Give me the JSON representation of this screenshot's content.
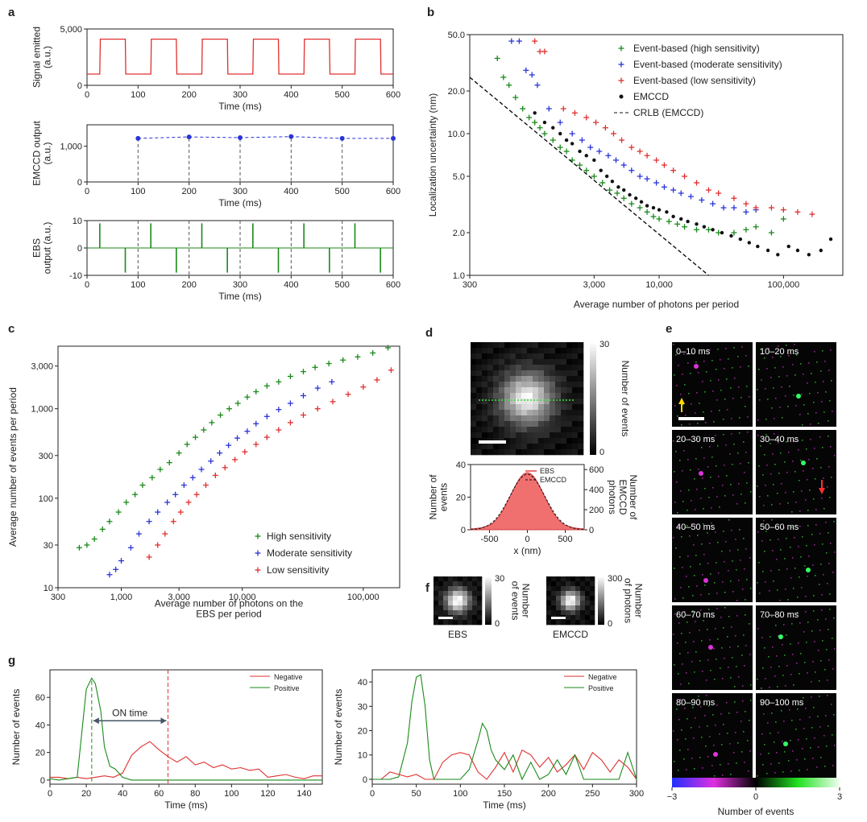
{
  "panel_labels": {
    "a": "a",
    "b": "b",
    "c": "c",
    "d": "d",
    "e": "e",
    "f": "f",
    "g": "g"
  },
  "chart_data": [
    {
      "id": "a1",
      "type": "line",
      "xlabel": "Time (ms)",
      "ylabel": "Signal emitted\n(a.u.)",
      "xlim": [
        0,
        600
      ],
      "ylim": [
        0,
        5000
      ],
      "xticks": [
        "0",
        "100",
        "200",
        "300",
        "400",
        "500",
        "600"
      ],
      "yticks": [
        "0",
        "5,000"
      ],
      "series": [
        {
          "color": "#e03030",
          "period": 100,
          "on_start": 25,
          "on_end": 75,
          "low": 1000,
          "high": 4100
        }
      ]
    },
    {
      "id": "a2",
      "type": "line",
      "xlabel": "Time (ms)",
      "ylabel": "EMCCD output\n(a.u.)",
      "xlim": [
        0,
        600
      ],
      "ylim": [
        0,
        1600
      ],
      "xticks": [
        "0",
        "100",
        "200",
        "300",
        "400",
        "500",
        "600"
      ],
      "yticks": [
        "0",
        "1,000"
      ],
      "x": [
        100,
        200,
        300,
        400,
        500,
        600
      ],
      "values": [
        1220,
        1260,
        1240,
        1270,
        1220,
        1220
      ],
      "color": "#2a35d8"
    },
    {
      "id": "a3",
      "type": "line",
      "xlabel": "Time (ms)",
      "ylabel": "EBS\noutput (a.u.)",
      "xlim": [
        0,
        600
      ],
      "ylim": [
        -10,
        10
      ],
      "xticks": [
        "0",
        "100",
        "200",
        "300",
        "400",
        "500",
        "600"
      ],
      "yticks": [
        "10",
        "0",
        "-10"
      ],
      "positive_spikes": [
        25,
        125,
        225,
        325,
        425,
        525
      ],
      "negative_spikes": [
        75,
        175,
        275,
        375,
        475,
        575
      ],
      "color": "#1a8a1a"
    },
    {
      "id": "b",
      "type": "scatter",
      "xlabel": "Average number of photons per period",
      "ylabel": "Localization uncertainty (nm)",
      "xscale": "log",
      "yscale": "log",
      "xlim": [
        300,
        300000
      ],
      "ylim": [
        1,
        50
      ],
      "xticks": [
        "300",
        "3,000",
        "10,000",
        "100,000"
      ],
      "xtick_values": [
        300,
        3000,
        10000,
        100000
      ],
      "yticks": [
        "1.0",
        "2.0",
        "5.0",
        "10.0",
        "20.0",
        "50.0"
      ],
      "ytick_values": [
        1,
        2,
        5,
        10,
        20,
        50
      ],
      "legend": [
        "Event-based (high sensitivity)",
        "Event-based (moderate sensitivity)",
        "Event-based (low sensitivity)",
        "EMCCD",
        "CRLB (EMCCD)"
      ],
      "series": [
        {
          "name": "Event-based (high sensitivity)",
          "color": "#1a8a1a",
          "marker": "plus",
          "x": [
            500,
            560,
            620,
            700,
            800,
            900,
            1000,
            1100,
            1200,
            1400,
            1600,
            1800,
            2000,
            2300,
            2600,
            3000,
            3500,
            4000,
            4600,
            5200,
            6000,
            7000,
            8000,
            9000,
            10000,
            12000,
            14000,
            16000,
            20000,
            25000,
            30000,
            40000,
            50000,
            60000,
            80000,
            100000
          ],
          "y": [
            34,
            25,
            22,
            18,
            15,
            13,
            12,
            11,
            10,
            9,
            8,
            7.5,
            6.5,
            6,
            5.5,
            5,
            4.5,
            4,
            3.8,
            3.5,
            3.2,
            3,
            2.8,
            2.6,
            2.5,
            2.4,
            2.3,
            2.2,
            2.1,
            2.1,
            2,
            2,
            2.1,
            2.2,
            2,
            2.5
          ]
        },
        {
          "name": "Event-based (moderate sensitivity)",
          "color": "#2a35d8",
          "marker": "plus",
          "x": [
            650,
            750,
            850,
            950,
            1050,
            1300,
            1600,
            2000,
            2400,
            2800,
            3300,
            3900,
            4500,
            5200,
            6000,
            7000,
            8000,
            9500,
            11000,
            13000,
            15000,
            18000,
            22000,
            27000,
            33000,
            40000,
            50000,
            60000
          ],
          "y": [
            45,
            45,
            28,
            26,
            22,
            15,
            12,
            10,
            9,
            8,
            7.5,
            7,
            6.5,
            6,
            5.5,
            5,
            4.8,
            4.5,
            4.2,
            4,
            3.8,
            3.6,
            3.4,
            3.2,
            3,
            3,
            2.8,
            2.9
          ]
        },
        {
          "name": "Event-based (low sensitivity)",
          "color": "#e03030",
          "marker": "plus",
          "x": [
            1000,
            1100,
            1200,
            1700,
            2100,
            2600,
            3100,
            3700,
            4300,
            5000,
            6000,
            7000,
            8000,
            9500,
            11000,
            13000,
            16000,
            20000,
            25000,
            30000,
            40000,
            50000,
            60000,
            80000,
            100000,
            130000,
            170000
          ],
          "y": [
            45,
            38,
            38,
            15,
            14,
            13,
            12,
            11,
            10,
            9,
            8,
            7.5,
            7,
            6.5,
            6,
            5.5,
            5,
            4.5,
            4,
            3.8,
            3.5,
            3.2,
            3,
            3,
            2.9,
            2.8,
            2.7
          ]
        },
        {
          "name": "EMCCD",
          "color": "#111111",
          "marker": "dot",
          "x": [
            1000,
            1200,
            1400,
            1600,
            1800,
            2000,
            2300,
            2600,
            3000,
            3400,
            3800,
            4200,
            4700,
            5200,
            5800,
            6500,
            7200,
            8000,
            9000,
            10000,
            11500,
            13000,
            15000,
            17000,
            20000,
            23000,
            27000,
            32000,
            38000,
            45000,
            53000,
            62000,
            75000,
            90000,
            110000,
            130000,
            160000,
            200000,
            240000
          ],
          "y": [
            14,
            12,
            11,
            10,
            9,
            8.5,
            7.5,
            7,
            6.5,
            5.5,
            5,
            4.6,
            4.2,
            4,
            3.7,
            3.5,
            3.3,
            3.1,
            3,
            2.9,
            2.8,
            2.6,
            2.5,
            2.4,
            2.3,
            2.2,
            2.1,
            2,
            1.9,
            1.8,
            1.7,
            1.6,
            1.5,
            1.4,
            1.6,
            1.5,
            1.4,
            1.5,
            1.8
          ]
        },
        {
          "name": "CRLB (EMCCD)",
          "color": "#111111",
          "dash": true,
          "x": [
            300,
            25000
          ],
          "y": [
            25,
            1
          ]
        }
      ]
    },
    {
      "id": "c",
      "type": "scatter",
      "xlabel": "Average number of photons on the\nEBS per period",
      "ylabel": "Average number of events per period",
      "xscale": "log",
      "yscale": "log",
      "xlim": [
        300,
        200000
      ],
      "ylim": [
        10,
        5000
      ],
      "xticks": [
        "300",
        "1,000",
        "3,000",
        "10,000",
        "100,000"
      ],
      "xtick_values": [
        300,
        1000,
        3000,
        10000,
        100000
      ],
      "yticks": [
        "10",
        "30",
        "100",
        "300",
        "1,000",
        "3,000"
      ],
      "ytick_values": [
        10,
        30,
        100,
        300,
        1000,
        3000
      ],
      "legend": [
        "High sensitivity",
        "Moderate sensitivity",
        "Low sensitivity"
      ],
      "series": [
        {
          "name": "High sensitivity",
          "color": "#1a8a1a",
          "x": [
            450,
            520,
            600,
            700,
            800,
            950,
            1100,
            1300,
            1500,
            1800,
            2100,
            2500,
            3000,
            3500,
            4100,
            4800,
            5600,
            6600,
            7800,
            9200,
            11000,
            13000,
            16000,
            20000,
            25000,
            32000,
            40000,
            52000,
            68000,
            90000,
            120000,
            160000
          ],
          "y": [
            28,
            30,
            35,
            45,
            55,
            70,
            90,
            110,
            140,
            170,
            210,
            250,
            320,
            400,
            480,
            580,
            700,
            850,
            1000,
            1150,
            1350,
            1550,
            1800,
            2000,
            2300,
            2600,
            2900,
            3200,
            3500,
            3800,
            4200,
            4800
          ]
        },
        {
          "name": "Moderate sensitivity",
          "color": "#2a35d8",
          "x": [
            800,
            900,
            1000,
            1200,
            1400,
            1700,
            2000,
            2400,
            2800,
            3300,
            3900,
            4600,
            5500,
            6500,
            7700,
            9100,
            11000,
            13000,
            16000,
            20000,
            25000,
            32000,
            42000,
            55000
          ],
          "y": [
            14,
            16,
            20,
            28,
            40,
            55,
            70,
            90,
            110,
            140,
            170,
            210,
            260,
            320,
            390,
            470,
            560,
            680,
            820,
            980,
            1150,
            1400,
            1700,
            2000
          ]
        },
        {
          "name": "Low sensitivity",
          "color": "#e03030",
          "x": [
            1700,
            2000,
            2300,
            2700,
            3100,
            3600,
            4200,
            5000,
            6000,
            7200,
            8700,
            10500,
            13000,
            16000,
            20000,
            25000,
            32000,
            42000,
            56000,
            75000,
            100000,
            130000,
            170000
          ],
          "y": [
            22,
            30,
            40,
            55,
            70,
            90,
            110,
            140,
            180,
            220,
            270,
            330,
            400,
            480,
            580,
            700,
            850,
            1000,
            1200,
            1450,
            1750,
            2100,
            2700
          ]
        }
      ]
    },
    {
      "id": "d_profile",
      "type": "line",
      "xlabel": "x (nm)",
      "ylabel": "Number of\nevents",
      "ylabel_right": "Number of\nEMCCD\nphotons",
      "xlim": [
        -750,
        750
      ],
      "ylim": [
        0,
        40
      ],
      "ylim_right": [
        0,
        650
      ],
      "xticks": [
        "-500",
        "0",
        "500"
      ],
      "yticks": [
        "0",
        "20",
        "40"
      ],
      "yticks_right": [
        "0",
        "200",
        "400",
        "600"
      ],
      "legend": [
        "EBS",
        "EMCCD"
      ],
      "series": [
        {
          "name": "EBS",
          "color": "#f07070",
          "sigma": 220,
          "peak": 35
        },
        {
          "name": "EMCCD",
          "color": "#111111",
          "dash": true,
          "sigma": 230,
          "peak": 34
        }
      ]
    },
    {
      "id": "g1",
      "type": "line",
      "xlabel": "Time (ms)",
      "ylabel": "Number of events",
      "xlim": [
        0,
        150
      ],
      "ylim": [
        -3,
        80
      ],
      "xticks": [
        "0",
        "20",
        "40",
        "60",
        "80",
        "100",
        "120",
        "140"
      ],
      "yticks": [
        "0",
        "20",
        "40",
        "60"
      ],
      "annotation": "ON time",
      "legend": [
        "Negative",
        "Positive"
      ],
      "series": [
        {
          "name": "Negative",
          "color": "#e03030",
          "x": [
            0,
            5,
            10,
            15,
            20,
            25,
            30,
            35,
            40,
            45,
            50,
            55,
            60,
            65,
            70,
            75,
            80,
            85,
            90,
            95,
            100,
            105,
            110,
            115,
            120,
            125,
            130,
            135,
            140,
            145,
            150
          ],
          "y": [
            2,
            2,
            1,
            2,
            1,
            2,
            3,
            2,
            5,
            18,
            24,
            28,
            22,
            17,
            13,
            17,
            11,
            13,
            9,
            11,
            8,
            9,
            7,
            8,
            2,
            3,
            4,
            2,
            1,
            3,
            3
          ]
        },
        {
          "name": "Positive",
          "color": "#1a8a1a",
          "x": [
            0,
            5,
            10,
            15,
            20,
            23,
            25,
            28,
            30,
            33,
            36,
            40,
            45,
            50,
            60,
            70,
            80,
            90,
            100,
            110,
            120,
            130,
            140,
            150
          ],
          "y": [
            1,
            0,
            1,
            2,
            66,
            74,
            70,
            50,
            24,
            10,
            8,
            2,
            0,
            0,
            0,
            0,
            0,
            0,
            0,
            0,
            0,
            0,
            0,
            0
          ]
        }
      ]
    },
    {
      "id": "g2",
      "type": "line",
      "xlabel": "Time (ms)",
      "ylabel": "Number of events",
      "xlim": [
        0,
        300
      ],
      "ylim": [
        -2,
        45
      ],
      "xticks": [
        "0",
        "50",
        "100",
        "150",
        "200",
        "250",
        "300"
      ],
      "yticks": [
        "0",
        "10",
        "20",
        "30",
        "40"
      ],
      "legend": [
        "Negative",
        "Positive"
      ],
      "series": [
        {
          "name": "Negative",
          "color": "#e03030",
          "x": [
            0,
            10,
            20,
            30,
            40,
            50,
            60,
            70,
            80,
            90,
            100,
            110,
            120,
            130,
            140,
            150,
            160,
            170,
            180,
            190,
            200,
            210,
            220,
            230,
            240,
            250,
            260,
            270,
            280,
            290,
            300
          ],
          "y": [
            0,
            0,
            3,
            2,
            1,
            2,
            0,
            0,
            7,
            10,
            11,
            10,
            3,
            0,
            5,
            11,
            3,
            12,
            10,
            5,
            9,
            3,
            6,
            10,
            4,
            11,
            8,
            3,
            8,
            5,
            0
          ]
        },
        {
          "name": "Positive",
          "color": "#1a8a1a",
          "x": [
            0,
            10,
            20,
            30,
            40,
            45,
            50,
            55,
            60,
            65,
            70,
            80,
            90,
            100,
            110,
            120,
            125,
            130,
            135,
            140,
            150,
            160,
            170,
            180,
            190,
            200,
            210,
            220,
            230,
            240,
            250,
            260,
            270,
            280,
            290,
            300
          ],
          "y": [
            0,
            0,
            0,
            1,
            15,
            32,
            42,
            43,
            30,
            8,
            0,
            0,
            0,
            0,
            4,
            16,
            23,
            20,
            12,
            8,
            4,
            10,
            0,
            7,
            0,
            2,
            8,
            2,
            10,
            0,
            0,
            0,
            0,
            0,
            11,
            0
          ]
        }
      ]
    }
  ],
  "d_image": {
    "colorbar_max": "30",
    "colorbar_min": "0",
    "colorbar_label": "Number of events"
  },
  "e_frames": [
    "0–10 ms",
    "10–20 ms",
    "20–30 ms",
    "30–40 ms",
    "40–50 ms",
    "50–60 ms",
    "60–70 ms",
    "70–80 ms",
    "80–90 ms",
    "90–100 ms"
  ],
  "e_colorbar": {
    "ticks": [
      "−3",
      "0",
      "3"
    ],
    "label": "Number of events"
  },
  "f": {
    "ebs_label": "EBS",
    "emccd_label": "EMCCD",
    "ebs_max": "30",
    "ebs_min": "0",
    "ebs_cb_label": "Number\nof events",
    "emccd_max": "300",
    "emccd_min": "0",
    "emccd_cb_label": "Number\nof photons"
  }
}
